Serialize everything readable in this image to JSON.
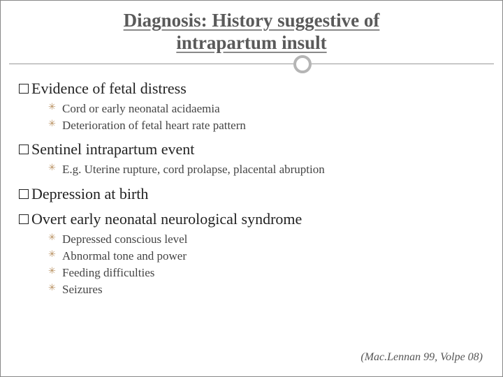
{
  "title_line1": "Diagnosis: History suggestive of",
  "title_line2": "intrapartum insult",
  "sections": {
    "s1": {
      "heading": "Evidence of fetal distress",
      "items": {
        "i1": "Cord or early neonatal acidaemia",
        "i2": "Deterioration of fetal heart rate pattern"
      }
    },
    "s2": {
      "heading": "Sentinel intrapartum event",
      "items": {
        "i1": "E.g. Uterine rupture, cord prolapse, placental abruption"
      }
    },
    "s3": {
      "heading": "Depression at birth"
    },
    "s4": {
      "heading": "Overt early neonatal neurological syndrome",
      "items": {
        "i1": "Depressed conscious level",
        "i2": "Abnormal tone and power",
        "i3": "Feeding difficulties",
        "i4": "Seizures"
      }
    }
  },
  "citation": "(Mac.Lennan 99, Volpe 08)",
  "colors": {
    "title_text": "#5a5a5a",
    "body_text": "#222222",
    "sub_text": "#444444",
    "bullet_star": "#b89060",
    "circle_border": "#b5b5b5",
    "divider": "#999999",
    "background": "#ffffff"
  },
  "typography": {
    "title_fontsize": 27,
    "heading_fontsize": 22,
    "sub_fontsize": 17,
    "citation_fontsize": 16,
    "font_family": "Georgia, serif"
  }
}
